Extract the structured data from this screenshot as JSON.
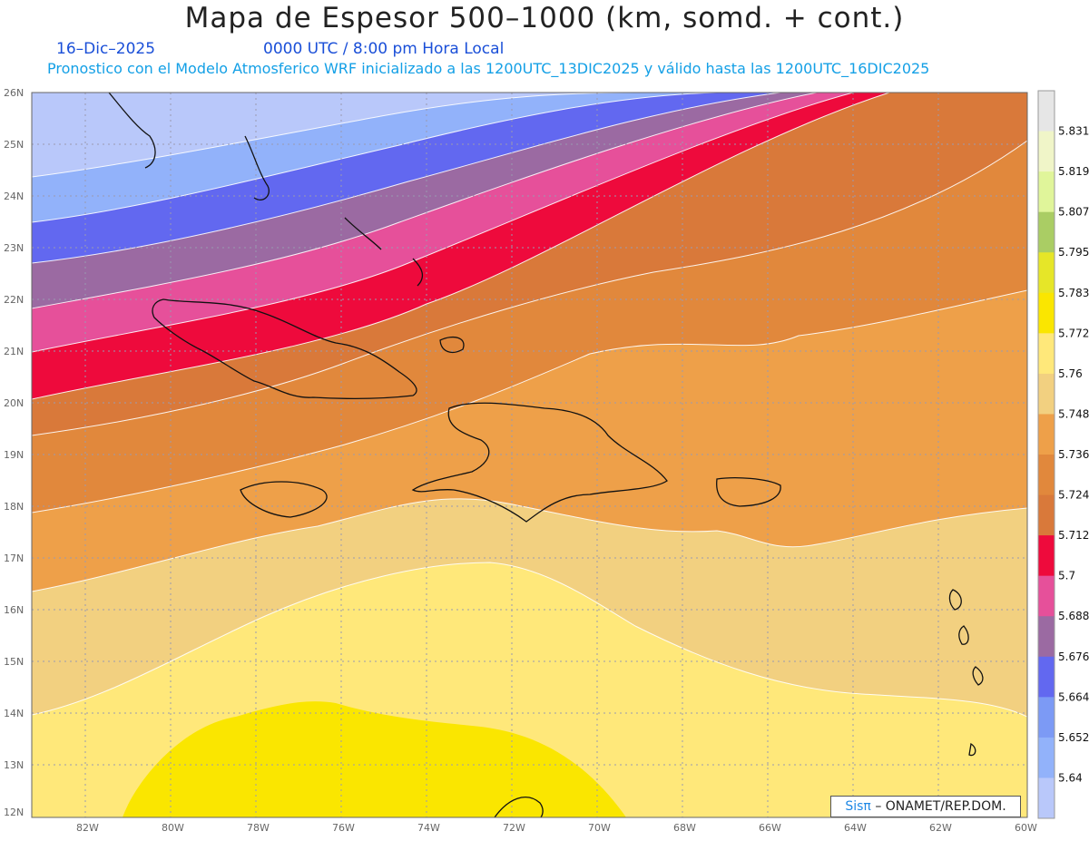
{
  "title": "Mapa de Espesor 500–1000 (km, somd. + cont.)",
  "date": "16–Dic–2025",
  "time": "0000 UTC / 8:00 pm Hora Local",
  "subtitle": "Pronostico con el Modelo Atmosferico WRF inicializado a las 1200UTC_13DIC2025 y válido hasta las  1200UTC_16DIC2025",
  "credit_brand": "Sisπ",
  "credit_text": "– ONAMET/REP.DOM.",
  "lat_labels": [
    "26N",
    "25N",
    "24N",
    "23N",
    "22N",
    "21N",
    "20N",
    "19N",
    "18N",
    "17N",
    "16N",
    "15N",
    "14N",
    "13N",
    "12N"
  ],
  "lon_labels": [
    "82W",
    "80W",
    "78W",
    "76W",
    "74W",
    "72W",
    "70W",
    "68W",
    "66W",
    "64W",
    "62W",
    "60W"
  ],
  "colorbar": {
    "labels": [
      "5.831",
      "5.819",
      "5.807",
      "5.795",
      "5.783",
      "5.772",
      "5.76",
      "5.748",
      "5.736",
      "5.724",
      "5.712",
      "5.7",
      "5.688",
      "5.676",
      "5.664",
      "5.652",
      "5.64"
    ],
    "colors": [
      "#e6e6e6",
      "#f0f5c8",
      "#e0f59a",
      "#aacd64",
      "#e6e628",
      "#fae600",
      "#ffe87a",
      "#f2d080",
      "#eea049",
      "#e1883c",
      "#d9793a",
      "#ee0a3c",
      "#e6509a",
      "#9b6aa2",
      "#6268f0",
      "#7c9af5",
      "#92b2fa",
      "#b9c8fa"
    ]
  },
  "bands": [
    {
      "name": "5.64",
      "color": "#b9c8fa"
    },
    {
      "name": "5.652",
      "color": "#92b2fa"
    },
    {
      "name": "5.664",
      "color": "#6268f0"
    },
    {
      "name": "5.676",
      "color": "#9b6aa2"
    },
    {
      "name": "5.688",
      "color": "#e6509a"
    },
    {
      "name": "5.7",
      "color": "#ee0a3c"
    },
    {
      "name": "5.712",
      "color": "#d9793a"
    },
    {
      "name": "5.724",
      "color": "#e1883c"
    },
    {
      "name": "5.736",
      "color": "#eea049"
    },
    {
      "name": "5.748",
      "color": "#f2d080"
    },
    {
      "name": "5.76",
      "color": "#ffe87a"
    },
    {
      "name": "5.772",
      "color": "#fae600"
    }
  ]
}
